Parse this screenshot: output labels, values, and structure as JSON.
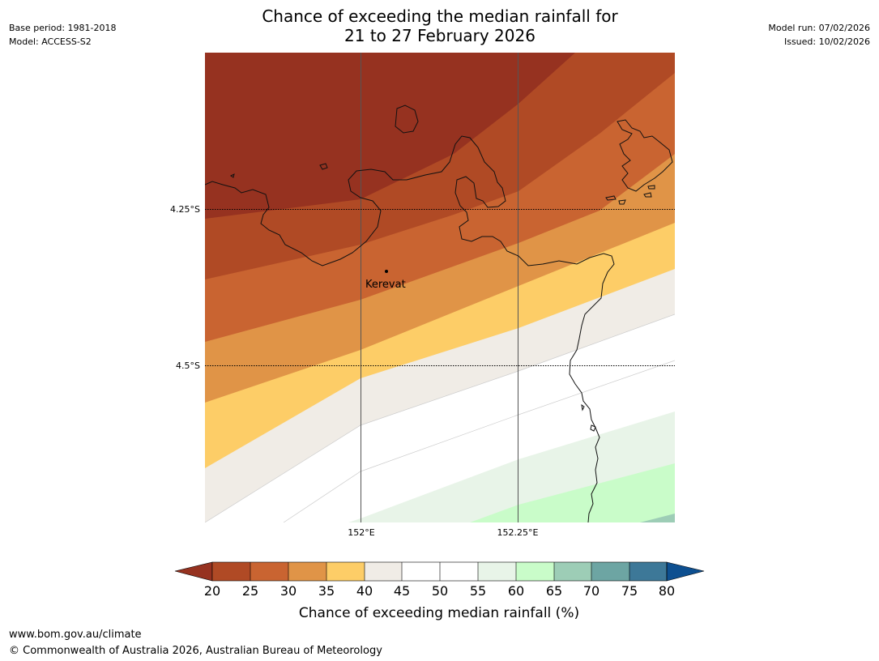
{
  "meta": {
    "base_period": "Base period: 1981-2018",
    "model": "Model: ACCESS-S2",
    "model_run": "Model run: 07/02/2026",
    "issued": "Issued: 10/02/2026"
  },
  "title": {
    "line1": "Chance of exceeding the median rainfall for",
    "line2": "21 to 27 February 2026"
  },
  "map": {
    "place_label": "Kerevat",
    "lat_labels": [
      "4.25°S",
      "4.5°S"
    ],
    "lon_labels": [
      "152°E",
      "152.25°E"
    ]
  },
  "colorbar": {
    "ticks": [
      "20",
      "25",
      "30",
      "35",
      "40",
      "45",
      "50",
      "55",
      "60",
      "65",
      "70",
      "75",
      "80"
    ],
    "label": "Chance of exceeding median rainfall (%)",
    "colors": {
      "under_20": "#963220",
      "c20_25": "#b04a25",
      "c25_30": "#c96431",
      "c30_35": "#e09447",
      "c35_40": "#fdcd67",
      "c40_45": "#f0ece6",
      "c45_50": "#ffffff",
      "c50_55": "#ffffff",
      "c55_60": "#e8f4e8",
      "c60_65": "#c9fcc9",
      "c65_70": "#9dcdb6",
      "c70_75": "#6da5a3",
      "c75_80": "#3d7898",
      "over_80": "#0d4f90"
    }
  },
  "footer": {
    "url": "www.bom.gov.au/climate",
    "copyright": "© Commonwealth of Australia 2026, Australian Bureau of Meteorology"
  }
}
